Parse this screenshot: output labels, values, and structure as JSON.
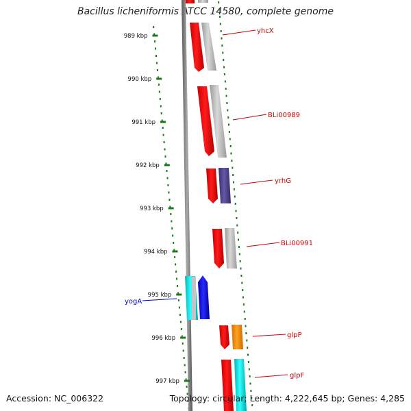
{
  "title": "Bacillus licheniformis ATCC 14580, complete genome",
  "footer": {
    "accession": "Accession: NC_006322",
    "summary": "Topology: circular; Length: 4,222,645 bp; Genes: 4,285"
  },
  "ticks": [
    "989 kbp",
    "990 kbp",
    "991 kbp",
    "992 kbp",
    "993 kbp",
    "994 kbp",
    "995 kbp",
    "996 kbp",
    "997 kbp"
  ],
  "gene_labels": [
    {
      "name": "yhcX",
      "color": "#cc0000"
    },
    {
      "name": "BLi00989",
      "color": "#cc0000"
    },
    {
      "name": "yrhG",
      "color": "#cc0000"
    },
    {
      "name": "BLi00991",
      "color": "#cc0000"
    },
    {
      "name": "yogA",
      "color": "#0000cc"
    },
    {
      "name": "glpP",
      "color": "#cc0000"
    },
    {
      "name": "glpF",
      "color": "#cc0000"
    }
  ],
  "colors": {
    "backbone": "#777777",
    "tick_dots": "#1a7a1a",
    "cds_red": "#ff0000",
    "gray": "#b8b8b8",
    "purple": "#4b3f8c",
    "cyan": "#00e5e5",
    "blue": "#0000ee",
    "orange": "#ff8c00"
  }
}
